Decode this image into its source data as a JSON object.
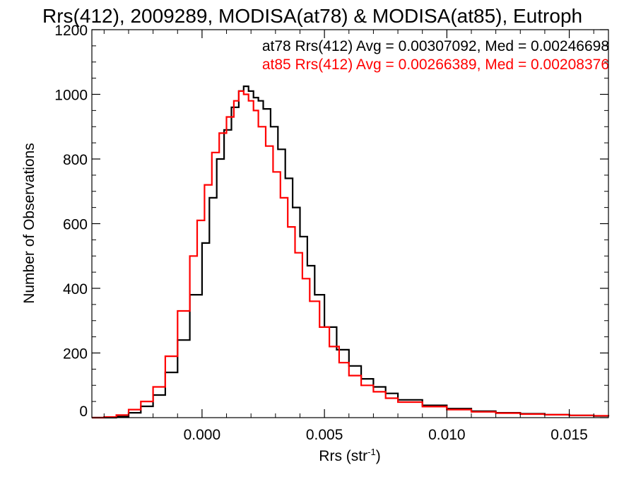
{
  "chart_data": {
    "type": "line",
    "title": "Rrs(412), 2009289, MODISA(at78) & MODISA(at85), Eutroph",
    "xlabel": "Rrs (str",
    "xlabel_sup": "-1",
    "xlabel_close": ")",
    "ylabel": "Number of Observations",
    "xlim": [
      -0.0045,
      0.0166
    ],
    "ylim": [
      0,
      1200
    ],
    "x_ticks": [
      0.0,
      0.005,
      0.01,
      0.015
    ],
    "x_tick_labels": [
      "0.000",
      "0.005",
      "0.010",
      "0.015"
    ],
    "y_ticks": [
      0,
      200,
      400,
      600,
      800,
      1000,
      1200
    ],
    "y_tick_labels": [
      "0",
      "200",
      "400",
      "600",
      "800",
      "1000",
      "1200"
    ],
    "grid": false,
    "step": true,
    "series": [
      {
        "name": "at78",
        "color": "#000000",
        "legend": "at78 Rrs(412) Avg = 0.00307092, Med = 0.00246698",
        "x": [
          -0.0045,
          -0.004,
          -0.0035,
          -0.003,
          -0.0025,
          -0.002,
          -0.0015,
          -0.001,
          -0.0005,
          0.0,
          0.0003,
          0.0006,
          0.0009,
          0.0012,
          0.0015,
          0.0017,
          0.0019,
          0.0021,
          0.0023,
          0.0025,
          0.0028,
          0.0031,
          0.0034,
          0.0037,
          0.004,
          0.0043,
          0.0046,
          0.005,
          0.0055,
          0.006,
          0.0065,
          0.007,
          0.0075,
          0.008,
          0.009,
          0.01,
          0.011,
          0.012,
          0.013,
          0.014,
          0.015,
          0.016,
          0.0166
        ],
        "y": [
          0,
          0,
          3,
          15,
          35,
          70,
          140,
          240,
          380,
          540,
          680,
          800,
          890,
          960,
          1010,
          1025,
          1010,
          990,
          980,
          955,
          900,
          830,
          740,
          650,
          560,
          470,
          380,
          280,
          210,
          160,
          120,
          95,
          75,
          55,
          38,
          28,
          20,
          15,
          12,
          9,
          7,
          5,
          4
        ]
      },
      {
        "name": "at85",
        "color": "#ff0000",
        "legend": "at85 Rrs(412) Avg = 0.00266389, Med = 0.00208376",
        "x": [
          -0.0045,
          -0.004,
          -0.0035,
          -0.003,
          -0.0025,
          -0.002,
          -0.0015,
          -0.001,
          -0.0005,
          -0.0002,
          0.0001,
          0.0004,
          0.0007,
          0.001,
          0.0013,
          0.0015,
          0.0017,
          0.0019,
          0.0021,
          0.0023,
          0.0026,
          0.0029,
          0.0032,
          0.0035,
          0.0038,
          0.0041,
          0.0044,
          0.0048,
          0.0052,
          0.0056,
          0.006,
          0.0065,
          0.007,
          0.0075,
          0.008,
          0.009,
          0.01,
          0.011,
          0.012,
          0.013,
          0.014,
          0.015,
          0.016,
          0.0166
        ],
        "y": [
          0,
          2,
          8,
          25,
          50,
          95,
          190,
          330,
          500,
          610,
          720,
          820,
          880,
          930,
          980,
          1010,
          1000,
          980,
          950,
          900,
          840,
          760,
          680,
          590,
          510,
          430,
          360,
          280,
          220,
          170,
          130,
          100,
          80,
          60,
          48,
          34,
          25,
          18,
          14,
          11,
          9,
          7,
          6,
          5
        ]
      }
    ]
  }
}
